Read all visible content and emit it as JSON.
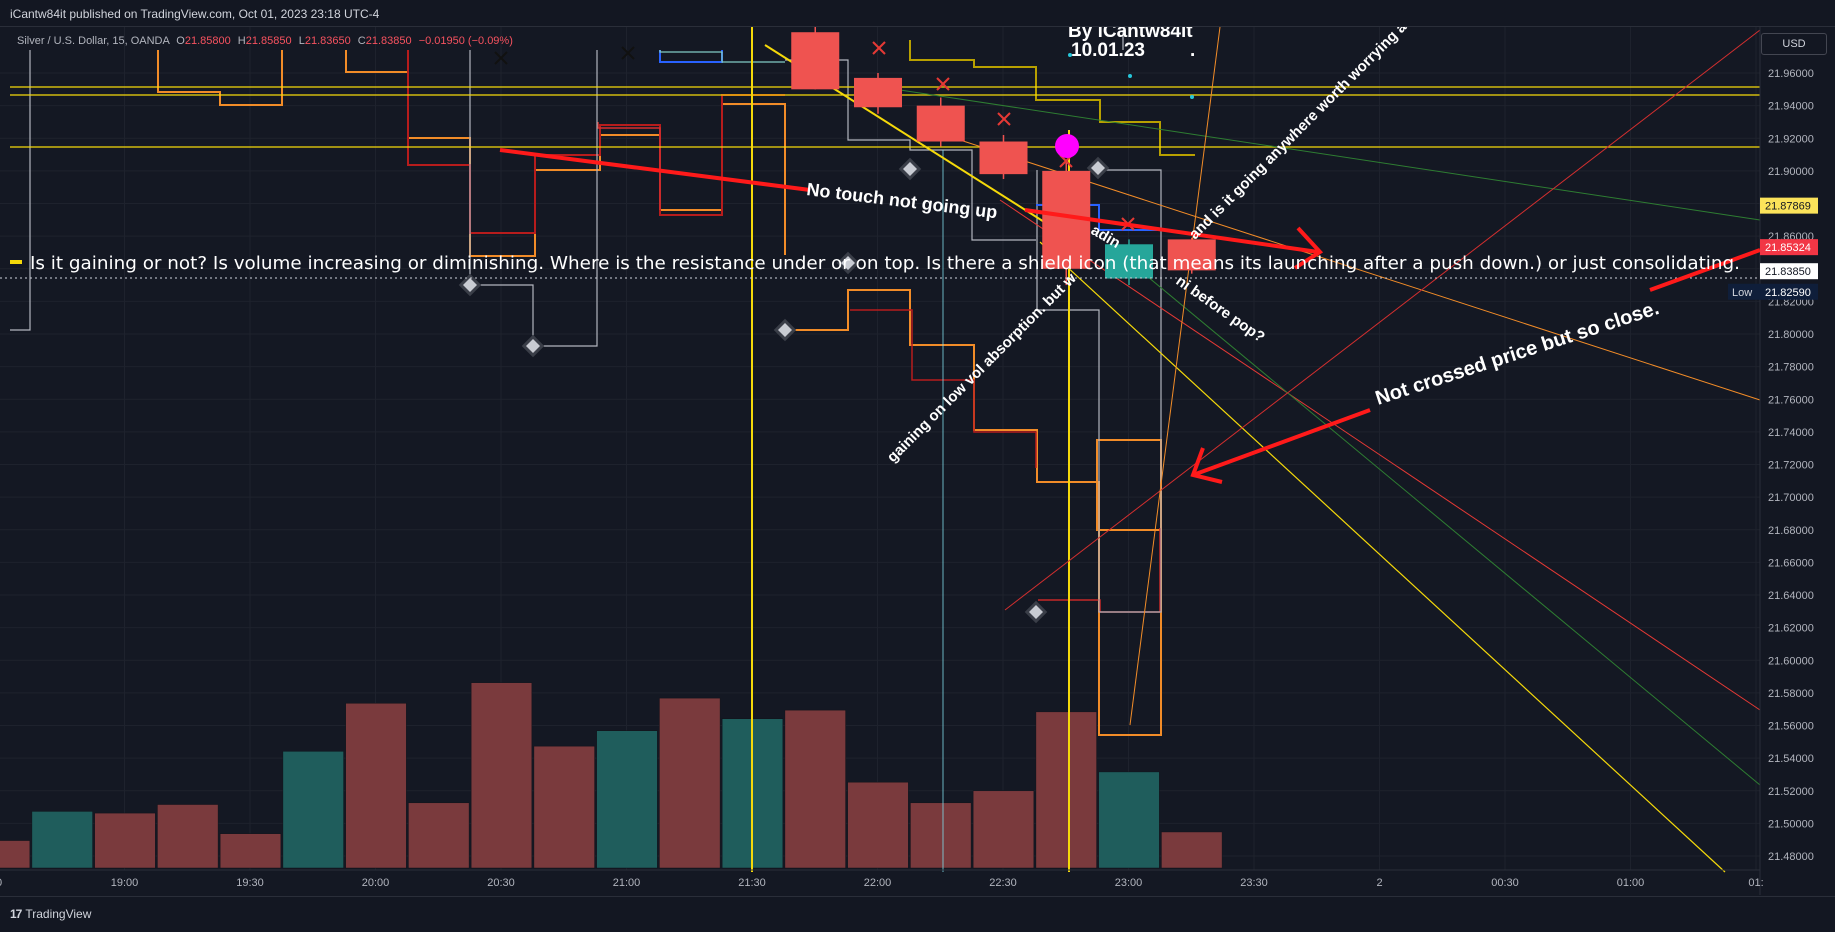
{
  "header": {
    "publish_text": "iCantw84it published on TradingView.com, Oct 01, 2023 23:18 UTC-4"
  },
  "legend": {
    "symbol": "Silver / U.S. Dollar, 15, OANDA",
    "open_label": "O",
    "open": "21.85800",
    "high_label": "H",
    "high": "21.85850",
    "low_label": "L",
    "low": "21.83650",
    "close_label": "C",
    "close": "21.83850",
    "change": "−0.01950 (−0.09%)"
  },
  "currency_button": "USD",
  "footer": {
    "logo_mark": "17",
    "logo_text": "TradingView"
  },
  "colors": {
    "background": "#141823",
    "bull": "#26a69a",
    "bear": "#ef5350",
    "volume_bull": "#1f5d5c",
    "volume_bear": "#7a3a3d",
    "annotation_red": "#ff1a1a",
    "hline_yellow": "#f5d90a",
    "marker_magenta": "#ff00ff",
    "last_price_tag": "#f23645",
    "prev_close_tag": "#fbe35a",
    "low_tag": "#0f1e3a"
  },
  "annotations": {
    "signature_line1": "By iCantw84it",
    "signature_line2": "10.01.23",
    "signature_dot": ".",
    "no_touch": "No touch not going up",
    "main_question": "Is it gaining or not?  Is volume increasing  or diminishing.   Where is the resistance under or on top.   Is there a shield icon (that means its launching after a push down.) or just consolidating.",
    "not_crossed": "Not crossed price but so close.",
    "gaining_low_vol": "gaining on low vol  absorption. but w",
    "before_pop": "ni before pop?",
    "worrying": "and is it going anywhere worth worrying about",
    "fading": "adin"
  },
  "chart_data": {
    "type": "candlestick",
    "symbol": "Silver / U.S. Dollar, 15, OANDA",
    "x_tick_labels": [
      "0",
      "19:00",
      "19:30",
      "20:00",
      "20:30",
      "21:00",
      "21:30",
      "22:00",
      "22:30",
      "23:00",
      "23:30",
      "2",
      "00:30",
      "01:00",
      "01:"
    ],
    "y_tick_labels": [
      "21.96000",
      "21.94000",
      "21.92000",
      "21.90000",
      "21.88000",
      "21.86000",
      "21.84000",
      "21.82000",
      "21.80000",
      "21.78000",
      "21.76000",
      "21.74000",
      "21.72000",
      "21.70000",
      "21.68000",
      "21.66000",
      "21.64000",
      "21.62000",
      "21.60000",
      "21.58000",
      "21.56000",
      "21.54000",
      "21.52000",
      "21.50000",
      "21.48000"
    ],
    "ylim": [
      21.466,
      21.99
    ],
    "price_tags": [
      {
        "label": "",
        "value": "21.87869",
        "kind": "prev"
      },
      {
        "label": "",
        "value": "21.85324",
        "kind": "last"
      },
      {
        "label": "",
        "value": "21.83850",
        "kind": "close"
      },
      {
        "label": "Low",
        "value": "21.82590",
        "kind": "low"
      }
    ],
    "candles": [
      {
        "time": "21:45",
        "open": 21.985,
        "close": 21.95,
        "high": 21.99,
        "low": 21.95
      },
      {
        "time": "22:00",
        "open": 21.957,
        "close": 21.939,
        "high": 21.96,
        "low": 21.935
      },
      {
        "time": "22:15",
        "open": 21.94,
        "close": 21.918,
        "high": 21.945,
        "low": 21.915
      },
      {
        "time": "22:30",
        "open": 21.918,
        "close": 21.898,
        "high": 21.922,
        "low": 21.895
      },
      {
        "time": "22:45",
        "open": 21.9,
        "close": 21.84,
        "high": 21.905,
        "low": 21.83
      },
      {
        "time": "23:00",
        "open": 21.834,
        "close": 21.855,
        "high": 21.858,
        "low": 21.83
      },
      {
        "time": "23:15",
        "open": 21.858,
        "close": 21.839,
        "high": 21.859,
        "low": 21.837
      }
    ],
    "volume": [
      {
        "time": "18:30",
        "dir": "down",
        "value": 0.16
      },
      {
        "time": "18:45",
        "dir": "up",
        "value": 0.33
      },
      {
        "time": "19:00",
        "dir": "down",
        "value": 0.32
      },
      {
        "time": "19:15",
        "dir": "down",
        "value": 0.37
      },
      {
        "time": "19:30",
        "dir": "down",
        "value": 0.2
      },
      {
        "time": "19:45",
        "dir": "up",
        "value": 0.68
      },
      {
        "time": "20:00",
        "dir": "down",
        "value": 0.96
      },
      {
        "time": "20:15",
        "dir": "down",
        "value": 0.38
      },
      {
        "time": "20:30",
        "dir": "down",
        "value": 1.08
      },
      {
        "time": "20:45",
        "dir": "down",
        "value": 0.71
      },
      {
        "time": "21:00",
        "dir": "up",
        "value": 0.8
      },
      {
        "time": "21:15",
        "dir": "down",
        "value": 0.99
      },
      {
        "time": "21:30",
        "dir": "up",
        "value": 0.87
      },
      {
        "time": "21:45",
        "dir": "down",
        "value": 0.92
      },
      {
        "time": "22:00",
        "dir": "down",
        "value": 0.5
      },
      {
        "time": "22:15",
        "dir": "down",
        "value": 0.38
      },
      {
        "time": "22:30",
        "dir": "down",
        "value": 0.45
      },
      {
        "time": "22:45",
        "dir": "down",
        "value": 0.91
      },
      {
        "time": "23:00",
        "dir": "up",
        "value": 0.56
      },
      {
        "time": "23:15",
        "dir": "down",
        "value": 0.21
      }
    ],
    "horizontal_lines": [
      21.958,
      21.952,
      21.922
    ],
    "dotted_price_line": 21.8385,
    "grid": true
  }
}
